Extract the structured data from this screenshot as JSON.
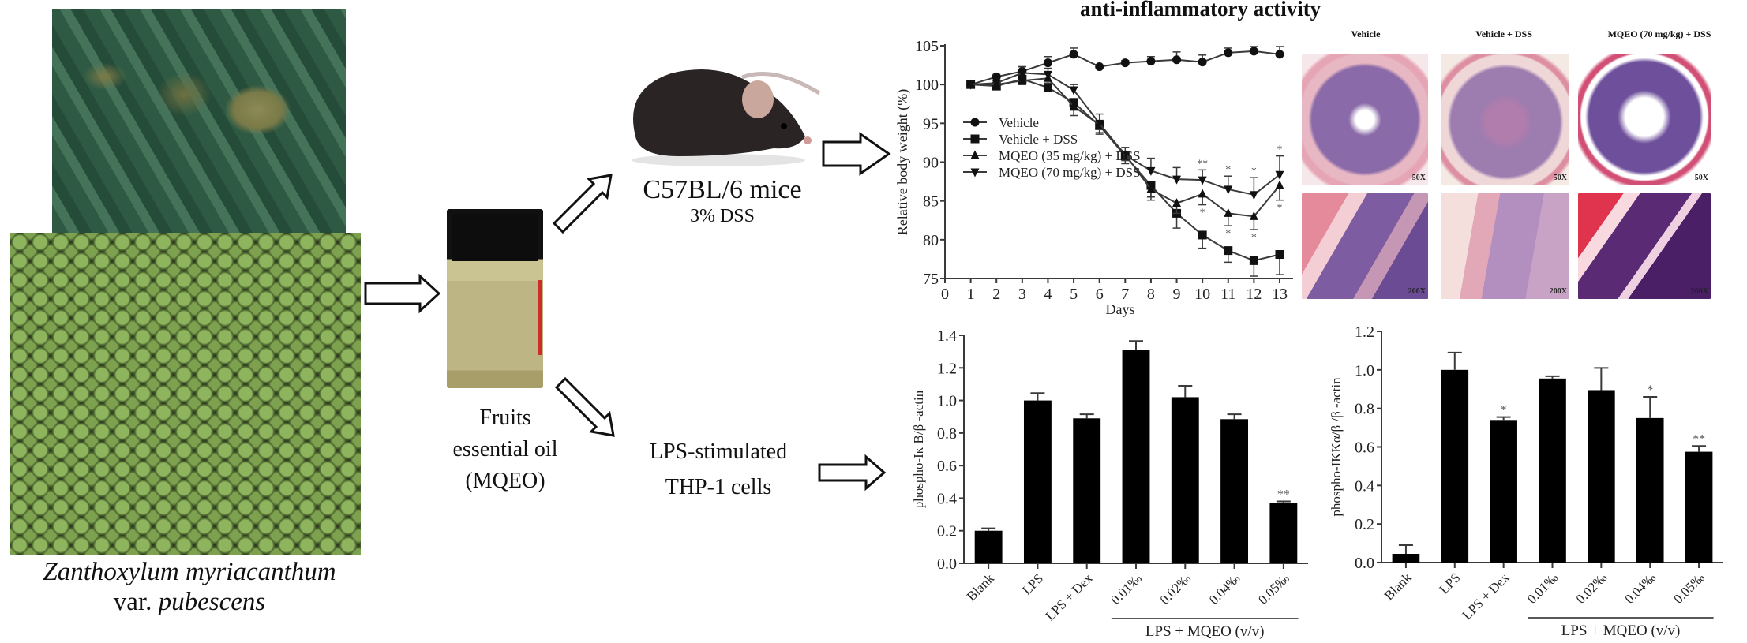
{
  "title": "anti-inflammatory activity",
  "plant": {
    "photos": [
      "plant-leaves-photo",
      "fruits-photo"
    ],
    "caption_line1": "Zanthoxylum myriacanthum",
    "caption_line2_prefix": "var. ",
    "caption_line2_italic": "pubescens"
  },
  "oil": {
    "label_line1": "Fruits",
    "label_line2": "essential oil",
    "label_line3": "(MQEO)"
  },
  "mice": {
    "label": "C57BL/6 mice",
    "sub_label": "3% DSS"
  },
  "cells": {
    "label_line1": "LPS-stimulated",
    "label_line2": "THP-1 cells"
  },
  "histology": {
    "columns": [
      "Vehicle",
      "Vehicle + DSS",
      "MQEO (70 mg/kg) + DSS"
    ],
    "magnification_top": "50X",
    "magnification_bottom": "200X"
  },
  "chart_data": [
    {
      "type": "line",
      "title": "",
      "xlabel": "Days",
      "ylabel": "Relative body weight (%)",
      "xlim": [
        0,
        13
      ],
      "ylim": [
        75,
        105
      ],
      "x_ticks": [
        0,
        1,
        2,
        3,
        4,
        5,
        6,
        7,
        8,
        9,
        10,
        11,
        12,
        13
      ],
      "y_ticks": [
        75,
        80,
        85,
        90,
        95,
        100,
        105
      ],
      "x": [
        1,
        2,
        3,
        4,
        5,
        6,
        7,
        8,
        9,
        10,
        11,
        12,
        13
      ],
      "legend_position": "left-middle",
      "series": [
        {
          "name": "Vehicle",
          "marker": "circle",
          "values": [
            100,
            101,
            101.7,
            102.8,
            103.9,
            102.3,
            102.8,
            103,
            103.2,
            102.9,
            104.1,
            104.3,
            103.9
          ],
          "errors": [
            0,
            0.3,
            0.6,
            0.8,
            0.8,
            0.2,
            0.3,
            0.6,
            1.0,
            0.9,
            0.6,
            0.6,
            1.0
          ]
        },
        {
          "name": "Vehicle + DSS",
          "marker": "square",
          "values": [
            100,
            99.8,
            100.7,
            99.6,
            97.7,
            94.7,
            90.8,
            87,
            83.4,
            80.6,
            78.6,
            77.3,
            78.1
          ],
          "errors": [
            0,
            0.3,
            0.7,
            0.5,
            1.0,
            1.1,
            1.0,
            1.5,
            1.9,
            1.7,
            1.5,
            2.0,
            2.6
          ]
        },
        {
          "name": "MQEO (35 mg/kg) + DSS",
          "marker": "triangle-up",
          "values": [
            100,
            100,
            100.5,
            100.8,
            97.2,
            94.8,
            91,
            86.5,
            84.7,
            85.9,
            83.4,
            83,
            87
          ],
          "errors": [
            0,
            0.3,
            0.5,
            0.6,
            1.2,
            1.0,
            0.8,
            1.4,
            1.3,
            1.4,
            1.6,
            1.7,
            1.9
          ]
        },
        {
          "name": "MQEO (70 mg/kg) + DSS",
          "marker": "triangle-down",
          "values": [
            100,
            100.2,
            101.5,
            101.3,
            99.3,
            95,
            90.9,
            88.9,
            87.8,
            87.7,
            86.5,
            85.8,
            88.4
          ],
          "errors": [
            0,
            0.3,
            0.8,
            0.8,
            0.7,
            1.2,
            1.0,
            1.6,
            1.5,
            1.3,
            1.7,
            2.2,
            2.4
          ]
        }
      ],
      "annotations": [
        {
          "x": 10,
          "series": "MQEO (70 mg/kg) + DSS",
          "text": "**",
          "side": "above"
        },
        {
          "x": 10,
          "series": "MQEO (35 mg/kg) + DSS",
          "text": "*",
          "side": "below"
        },
        {
          "x": 11,
          "series": "MQEO (70 mg/kg) + DSS",
          "text": "*",
          "side": "above"
        },
        {
          "x": 11,
          "series": "MQEO (35 mg/kg) + DSS",
          "text": "*",
          "side": "below"
        },
        {
          "x": 12,
          "series": "MQEO (70 mg/kg) + DSS",
          "text": "*",
          "side": "above"
        },
        {
          "x": 12,
          "series": "MQEO (35 mg/kg) + DSS",
          "text": "*",
          "side": "below"
        },
        {
          "x": 13,
          "series": "MQEO (70 mg/kg) + DSS",
          "text": "*",
          "side": "above"
        },
        {
          "x": 13,
          "series": "MQEO (35 mg/kg) + DSS",
          "text": "*",
          "side": "below"
        }
      ],
      "grid": false
    },
    {
      "type": "bar",
      "title": "",
      "ylabel": "phospho-Iκ B/β -actin",
      "xlabel": "",
      "group_label": "LPS + MQEO (v/v)",
      "categories": [
        "Blank",
        "LPS",
        "LPS + Dex",
        "0.01‰",
        "0.02‰",
        "0.04‰",
        "0.05‰"
      ],
      "values": [
        0.2,
        1.0,
        0.89,
        1.31,
        1.02,
        0.885,
        0.37
      ],
      "errors": [
        0.015,
        0.045,
        0.025,
        0.055,
        0.07,
        0.03,
        0.01
      ],
      "significance": [
        "",
        "",
        "",
        "",
        "",
        "",
        "**"
      ],
      "ylim": [
        0,
        1.4
      ],
      "y_ticks": [
        0.0,
        0.2,
        0.4,
        0.6,
        0.8,
        1.0,
        1.2,
        1.4
      ],
      "grid": false
    },
    {
      "type": "bar",
      "title": "",
      "ylabel": "phospho-IKKα/β /β -actin",
      "xlabel": "",
      "group_label": "LPS + MQEO (v/v)",
      "categories": [
        "Blank",
        "LPS",
        "LPS + Dex",
        "0.01‰",
        "0.02‰",
        "0.04‰",
        "0.05‰"
      ],
      "values": [
        0.045,
        1.0,
        0.74,
        0.955,
        0.895,
        0.75,
        0.575
      ],
      "errors": [
        0.045,
        0.09,
        0.015,
        0.012,
        0.115,
        0.11,
        0.03
      ],
      "significance": [
        "",
        "",
        "*",
        "",
        "",
        "*",
        "**"
      ],
      "ylim": [
        0,
        1.2
      ],
      "y_ticks": [
        0.0,
        0.2,
        0.4,
        0.6,
        0.8,
        1.0,
        1.2
      ],
      "grid": false
    }
  ]
}
